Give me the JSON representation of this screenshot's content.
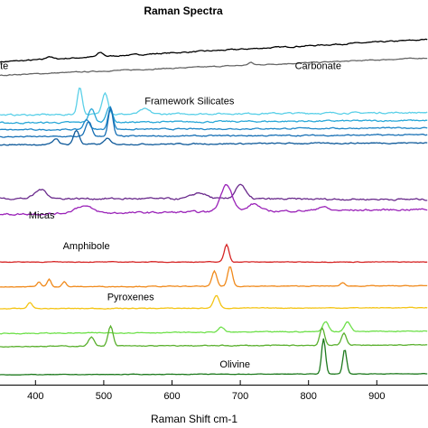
{
  "chart_data": {
    "type": "line",
    "title": "Raman Spectra",
    "xlabel": "Raman Shift cm-1",
    "ylabel": "",
    "xlim": [
      348,
      975
    ],
    "ticks": [
      400,
      500,
      600,
      700,
      800,
      900
    ],
    "tick_labels": [
      "400",
      "500",
      "600",
      "700",
      "800",
      "900"
    ],
    "grid": false,
    "legend": "none",
    "annotations": [
      {
        "text": "ate",
        "x": 340,
        "y": 6.2
      },
      {
        "text": "Carbonate",
        "x": 780,
        "y": 6.2
      },
      {
        "text": "Framework Silicates",
        "x": 560,
        "y": 5.5
      },
      {
        "text": "Micas",
        "x": 390,
        "y": 3.2
      },
      {
        "text": "Amphibole",
        "x": 440,
        "y": 2.58
      },
      {
        "text": "Pyroxenes",
        "x": 505,
        "y": 1.55
      },
      {
        "text": "Olivine",
        "x": 670,
        "y": 0.2
      }
    ],
    "series": [
      {
        "color": "#000000",
        "base": 6.35,
        "slope": 0.45,
        "noise": 0.02,
        "peaks": [
          [
            420,
            0.06,
            6
          ],
          [
            495,
            0.08,
            6
          ]
        ]
      },
      {
        "color": "#666666",
        "base": 6.08,
        "slope": 0.35,
        "noise": 0.015,
        "peaks": [
          [
            715,
            0.05,
            5
          ]
        ]
      },
      {
        "color": "#5bd0e8",
        "base": 5.28,
        "slope": 0.05,
        "noise": 0.025,
        "peaks": [
          [
            465,
            0.55,
            5
          ],
          [
            502,
            0.45,
            6
          ],
          [
            560,
            0.1,
            10
          ]
        ]
      },
      {
        "color": "#2aa8d8",
        "base": 5.12,
        "slope": 0.05,
        "noise": 0.025,
        "peaks": [
          [
            482,
            0.28,
            6
          ],
          [
            508,
            0.32,
            6
          ]
        ]
      },
      {
        "color": "#1f88c8",
        "base": 4.98,
        "slope": 0.04,
        "noise": 0.02,
        "peaks": [
          [
            475,
            0.2,
            6
          ],
          [
            510,
            0.45,
            5
          ]
        ]
      },
      {
        "color": "#1870b5",
        "base": 4.84,
        "slope": 0.04,
        "noise": 0.02,
        "peaks": [
          [
            478,
            0.3,
            6
          ],
          [
            510,
            0.55,
            5
          ]
        ]
      },
      {
        "color": "#0f5a9a",
        "base": 4.68,
        "slope": 0.04,
        "noise": 0.02,
        "peaks": [
          [
            430,
            0.12,
            6
          ],
          [
            460,
            0.28,
            6
          ],
          [
            505,
            0.12,
            6
          ]
        ]
      },
      {
        "color": "#6a2a8c",
        "base": 3.6,
        "slope": -0.02,
        "noise": 0.03,
        "peaks": [
          [
            408,
            0.18,
            12
          ],
          [
            640,
            0.12,
            15
          ],
          [
            700,
            0.3,
            10
          ]
        ]
      },
      {
        "color": "#9a22b8",
        "base": 3.28,
        "slope": 0.1,
        "noise": 0.03,
        "peaks": [
          [
            470,
            0.15,
            18
          ],
          [
            680,
            0.55,
            12
          ],
          [
            720,
            0.15,
            12
          ],
          [
            820,
            0.08,
            10
          ]
        ]
      },
      {
        "color": "#d62424",
        "base": 2.32,
        "slope": 0.0,
        "noise": 0.01,
        "peaks": [
          [
            680,
            0.35,
            5
          ]
        ]
      },
      {
        "color": "#f08a1c",
        "base": 1.82,
        "slope": 0.02,
        "noise": 0.012,
        "peaks": [
          [
            405,
            0.1,
            4
          ],
          [
            420,
            0.15,
            4
          ],
          [
            442,
            0.1,
            4
          ],
          [
            662,
            0.3,
            5
          ],
          [
            685,
            0.4,
            5
          ],
          [
            850,
            0.06,
            5
          ]
        ]
      },
      {
        "color": "#f4c414",
        "base": 1.38,
        "slope": 0.02,
        "noise": 0.012,
        "peaks": [
          [
            392,
            0.12,
            5
          ],
          [
            665,
            0.25,
            6
          ]
        ]
      },
      {
        "color": "#6ee04a",
        "base": 0.88,
        "slope": 0.05,
        "noise": 0.015,
        "peaks": [
          [
            672,
            0.1,
            6
          ],
          [
            825,
            0.2,
            6
          ],
          [
            857,
            0.2,
            6
          ]
        ]
      },
      {
        "color": "#5ab02e",
        "base": 0.62,
        "slope": 0.03,
        "noise": 0.015,
        "peaks": [
          [
            482,
            0.18,
            6
          ],
          [
            510,
            0.4,
            5
          ],
          [
            820,
            0.35,
            5
          ],
          [
            852,
            0.25,
            5
          ]
        ]
      },
      {
        "color": "#1e7a1e",
        "base": 0.05,
        "slope": 0.02,
        "noise": 0.008,
        "peaks": [
          [
            822,
            0.72,
            4
          ],
          [
            853,
            0.5,
            4
          ]
        ]
      }
    ],
    "ylim": [
      -0.15,
      7.05
    ]
  }
}
